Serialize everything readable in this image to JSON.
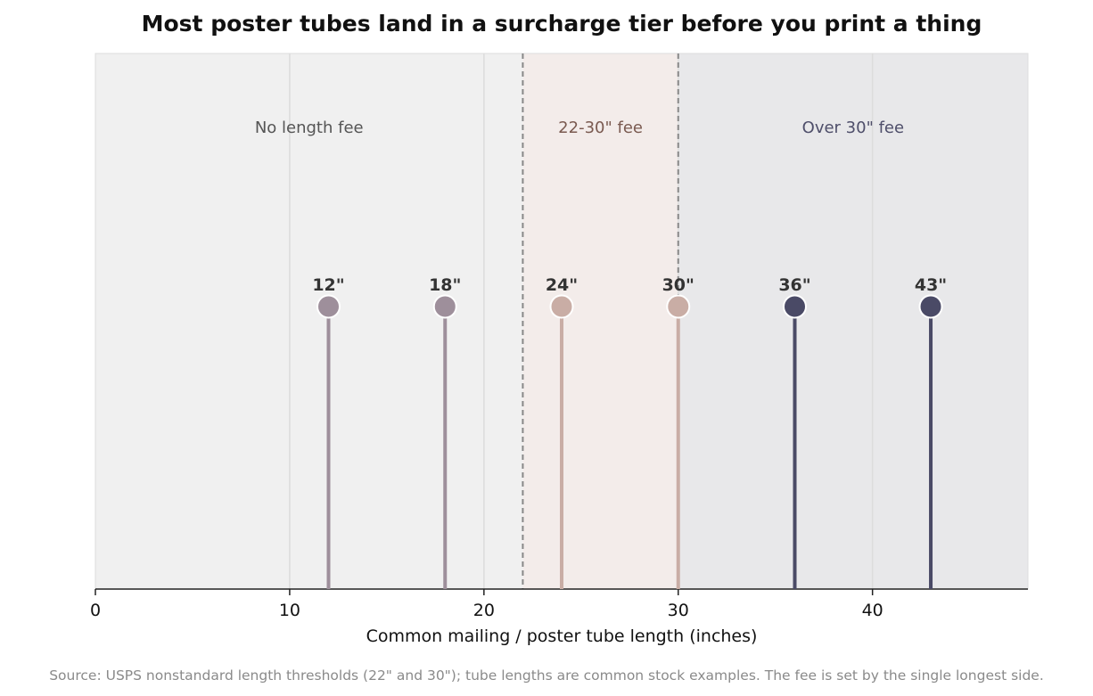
{
  "chart_data": {
    "type": "scatter",
    "title": "Most poster tubes land in a surcharge tier before you print a thing",
    "xlabel": "Common mailing / poster tube length (inches)",
    "ylabel": "",
    "xlim": [
      0,
      48
    ],
    "xticks": [
      0,
      10,
      20,
      30,
      40
    ],
    "xtick_labels": [
      "0",
      "10",
      "20",
      "30",
      "40"
    ],
    "grid": true,
    "thresholds": [
      22,
      30
    ],
    "zones": [
      {
        "label": "No length fee",
        "start": 0,
        "end": 22,
        "fill": "#f0f0f0",
        "text_color": "#555555"
      },
      {
        "label": "22-30\" fee",
        "start": 22,
        "end": 30,
        "fill": "#f3ecea",
        "text_color": "#7a5a50"
      },
      {
        "label": "Over 30\" fee",
        "start": 30,
        "end": 48,
        "fill": "#e8e8ea",
        "text_color": "#4e4e6a"
      }
    ],
    "points": [
      {
        "x": 12,
        "label": "12\"",
        "color": "#9e8f9b"
      },
      {
        "x": 18,
        "label": "18\"",
        "color": "#9e8f9b"
      },
      {
        "x": 24,
        "label": "24\"",
        "color": "#c9ada5"
      },
      {
        "x": 30,
        "label": "30\"",
        "color": "#c9ada5"
      },
      {
        "x": 36,
        "label": "36\"",
        "color": "#4a4a66"
      },
      {
        "x": 43,
        "label": "43\"",
        "color": "#4a4a66"
      }
    ],
    "source": "Source: USPS nonstandard length thresholds (22\" and 30\"); tube lengths are common stock examples. The fee is set by the single longest side."
  }
}
